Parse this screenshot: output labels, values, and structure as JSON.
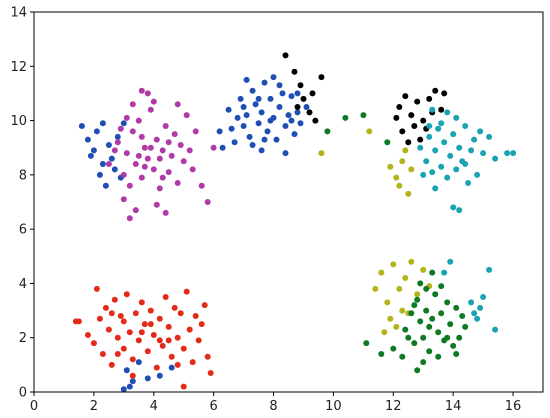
{
  "chart_data": {
    "type": "scatter",
    "title": "",
    "xlabel": "",
    "ylabel": "",
    "xlim": [
      0,
      17
    ],
    "ylim": [
      0,
      14
    ],
    "xticks": [
      "0",
      "2",
      "4",
      "6",
      "8",
      "10",
      "12",
      "14",
      "16"
    ],
    "yticks": [
      "0",
      "2",
      "4",
      "6",
      "8",
      "10",
      "12",
      "14"
    ],
    "grid": false,
    "legend": "none",
    "series": [
      {
        "color": "#1f4fb4",
        "points": [
          [
            1.6,
            9.8
          ],
          [
            1.8,
            9.3
          ],
          [
            2.0,
            8.9
          ],
          [
            2.1,
            9.6
          ],
          [
            2.3,
            8.4
          ],
          [
            2.2,
            8.0
          ],
          [
            2.5,
            9.1
          ],
          [
            2.6,
            8.6
          ],
          [
            2.4,
            7.6
          ],
          [
            2.8,
            9.4
          ],
          [
            2.7,
            8.2
          ],
          [
            2.9,
            7.9
          ],
          [
            3.0,
            9.9
          ],
          [
            1.9,
            8.7
          ],
          [
            2.3,
            9.9
          ],
          [
            6.3,
            9.0
          ],
          [
            6.2,
            9.6
          ],
          [
            6.5,
            10.4
          ],
          [
            6.7,
            9.2
          ],
          [
            6.9,
            10.8
          ],
          [
            7.0,
            9.8
          ],
          [
            7.1,
            10.2
          ],
          [
            7.2,
            9.4
          ],
          [
            7.3,
            11.1
          ],
          [
            7.4,
            10.6
          ],
          [
            7.5,
            9.9
          ],
          [
            7.6,
            10.3
          ],
          [
            7.7,
            11.4
          ],
          [
            7.8,
            9.6
          ],
          [
            7.9,
            10.8
          ],
          [
            8.0,
            10.1
          ],
          [
            8.1,
            9.3
          ],
          [
            8.2,
            10.5
          ],
          [
            8.3,
            11.0
          ],
          [
            8.4,
            9.8
          ],
          [
            8.5,
            10.2
          ],
          [
            8.6,
            10.9
          ],
          [
            8.7,
            9.5
          ],
          [
            8.8,
            10.3
          ],
          [
            8.9,
            9.9
          ],
          [
            7.0,
            10.5
          ],
          [
            7.3,
            9.1
          ],
          [
            7.6,
            8.9
          ],
          [
            8.0,
            11.6
          ],
          [
            8.4,
            8.8
          ],
          [
            7.1,
            11.5
          ],
          [
            6.8,
            10.1
          ],
          [
            7.9,
            10.0
          ],
          [
            8.6,
            10.0
          ],
          [
            7.5,
            10.8
          ],
          [
            8.2,
            11.3
          ],
          [
            6.6,
            9.7
          ],
          [
            8.8,
            11.0
          ],
          [
            7.7,
            9.3
          ],
          [
            9.1,
            10.5
          ],
          [
            3.1,
            0.8
          ],
          [
            3.3,
            0.4
          ],
          [
            3.2,
            0.2
          ],
          [
            3.8,
            0.5
          ],
          [
            3.5,
            1.1
          ],
          [
            4.2,
            0.6
          ],
          [
            4.6,
            0.9
          ],
          [
            3.0,
            0.1
          ]
        ]
      },
      {
        "color": "#b03aa8",
        "points": [
          [
            2.5,
            8.4
          ],
          [
            2.8,
            9.2
          ],
          [
            3.0,
            8.0
          ],
          [
            3.1,
            8.8
          ],
          [
            3.2,
            7.6
          ],
          [
            3.3,
            9.6
          ],
          [
            3.4,
            8.4
          ],
          [
            3.5,
            10.0
          ],
          [
            3.6,
            7.9
          ],
          [
            3.7,
            9.0
          ],
          [
            3.8,
            8.6
          ],
          [
            3.9,
            10.4
          ],
          [
            4.0,
            8.2
          ],
          [
            4.1,
            9.3
          ],
          [
            4.2,
            7.5
          ],
          [
            4.3,
            8.9
          ],
          [
            4.4,
            9.8
          ],
          [
            4.5,
            8.1
          ],
          [
            4.6,
            8.7
          ],
          [
            4.7,
            9.5
          ],
          [
            4.8,
            7.7
          ],
          [
            4.9,
            9.1
          ],
          [
            5.0,
            8.5
          ],
          [
            5.1,
            10.2
          ],
          [
            5.2,
            8.9
          ],
          [
            3.0,
            7.1
          ],
          [
            3.4,
            6.7
          ],
          [
            3.2,
            6.4
          ],
          [
            4.1,
            6.9
          ],
          [
            4.4,
            6.6
          ],
          [
            3.6,
            11.1
          ],
          [
            3.3,
            10.6
          ],
          [
            3.8,
            11.0
          ],
          [
            4.0,
            10.7
          ],
          [
            5.6,
            7.6
          ],
          [
            5.8,
            7.0
          ],
          [
            6.0,
            9.0
          ],
          [
            5.4,
            9.6
          ],
          [
            3.5,
            8.7
          ],
          [
            3.9,
            9.0
          ],
          [
            4.2,
            8.6
          ],
          [
            3.7,
            8.3
          ],
          [
            4.5,
            9.2
          ],
          [
            2.7,
            8.9
          ],
          [
            2.9,
            9.7
          ],
          [
            4.8,
            10.6
          ],
          [
            5.3,
            8.2
          ],
          [
            3.6,
            9.4
          ],
          [
            4.3,
            7.9
          ],
          [
            3.1,
            10.1
          ]
        ]
      },
      {
        "color": "#000000",
        "points": [
          [
            8.9,
            11.3
          ],
          [
            8.7,
            11.8
          ],
          [
            8.4,
            12.4
          ],
          [
            9.0,
            10.8
          ],
          [
            9.2,
            10.3
          ],
          [
            9.4,
            10.0
          ],
          [
            9.6,
            11.6
          ],
          [
            8.8,
            10.5
          ],
          [
            9.3,
            11.0
          ],
          [
            12.2,
            10.5
          ],
          [
            12.4,
            10.9
          ],
          [
            12.6,
            10.2
          ],
          [
            12.8,
            10.7
          ],
          [
            13.0,
            10.0
          ],
          [
            13.2,
            10.8
          ],
          [
            13.4,
            11.1
          ],
          [
            13.6,
            10.4
          ],
          [
            12.3,
            9.6
          ],
          [
            12.5,
            9.2
          ],
          [
            12.7,
            9.8
          ],
          [
            12.9,
            9.3
          ],
          [
            13.1,
            9.7
          ],
          [
            13.3,
            10.3
          ],
          [
            12.1,
            10.1
          ],
          [
            13.7,
            11.0
          ]
        ]
      },
      {
        "color": "#1aa3b0",
        "points": [
          [
            12.9,
            9.0
          ],
          [
            13.1,
            8.5
          ],
          [
            13.2,
            9.4
          ],
          [
            13.3,
            8.1
          ],
          [
            13.4,
            8.9
          ],
          [
            13.5,
            9.7
          ],
          [
            13.6,
            8.3
          ],
          [
            13.7,
            9.2
          ],
          [
            13.8,
            7.9
          ],
          [
            13.9,
            8.7
          ],
          [
            14.0,
            9.5
          ],
          [
            14.1,
            8.2
          ],
          [
            14.2,
            9.0
          ],
          [
            14.3,
            8.5
          ],
          [
            14.4,
            9.8
          ],
          [
            14.5,
            7.7
          ],
          [
            14.6,
            8.9
          ],
          [
            14.7,
            9.3
          ],
          [
            14.8,
            8.0
          ],
          [
            15.0,
            8.8
          ],
          [
            15.2,
            9.4
          ],
          [
            15.4,
            8.6
          ],
          [
            15.8,
            8.8
          ],
          [
            16.0,
            8.8
          ],
          [
            13.8,
            10.3
          ],
          [
            14.1,
            10.1
          ],
          [
            13.4,
            7.5
          ],
          [
            14.0,
            6.8
          ],
          [
            14.2,
            6.7
          ],
          [
            13.0,
            8.0
          ],
          [
            13.6,
            9.9
          ],
          [
            14.9,
            9.6
          ],
          [
            14.4,
            8.4
          ],
          [
            13.2,
            9.8
          ],
          [
            13.3,
            10.4
          ],
          [
            14.6,
            3.3
          ],
          [
            14.8,
            2.7
          ],
          [
            15.2,
            4.5
          ],
          [
            15.0,
            3.5
          ],
          [
            15.4,
            2.3
          ],
          [
            14.9,
            3.1
          ],
          [
            14.7,
            2.9
          ],
          [
            13.9,
            4.8
          ],
          [
            13.7,
            4.4
          ]
        ]
      },
      {
        "color": "#b3b31a",
        "points": [
          [
            9.6,
            8.8
          ],
          [
            11.2,
            9.6
          ],
          [
            11.9,
            8.3
          ],
          [
            12.1,
            7.9
          ],
          [
            12.3,
            8.5
          ],
          [
            12.5,
            7.3
          ],
          [
            12.2,
            7.6
          ],
          [
            12.6,
            8.2
          ],
          [
            12.4,
            8.9
          ],
          [
            11.4,
            3.8
          ],
          [
            11.6,
            4.4
          ],
          [
            11.8,
            3.3
          ],
          [
            12.0,
            4.7
          ],
          [
            12.2,
            3.8
          ],
          [
            12.4,
            4.2
          ],
          [
            12.6,
            4.8
          ],
          [
            12.8,
            3.6
          ],
          [
            13.0,
            4.5
          ],
          [
            13.2,
            3.9
          ],
          [
            11.9,
            2.7
          ],
          [
            12.1,
            2.4
          ],
          [
            12.3,
            3.0
          ],
          [
            11.7,
            2.2
          ],
          [
            12.5,
            2.9
          ]
        ]
      },
      {
        "color": "#0f7a24",
        "points": [
          [
            9.8,
            9.6
          ],
          [
            10.4,
            10.1
          ],
          [
            11.0,
            10.2
          ],
          [
            11.8,
            9.2
          ],
          [
            11.1,
            1.8
          ],
          [
            11.6,
            1.4
          ],
          [
            12.0,
            1.6
          ],
          [
            12.3,
            1.3
          ],
          [
            12.4,
            2.3
          ],
          [
            12.6,
            2.9
          ],
          [
            12.7,
            1.8
          ],
          [
            12.8,
            3.4
          ],
          [
            12.9,
            2.6
          ],
          [
            13.0,
            2.0
          ],
          [
            13.1,
            3.0
          ],
          [
            13.2,
            1.5
          ],
          [
            13.3,
            2.7
          ],
          [
            13.4,
            3.6
          ],
          [
            13.5,
            2.2
          ],
          [
            13.6,
            2.9
          ],
          [
            13.7,
            1.9
          ],
          [
            13.8,
            3.3
          ],
          [
            13.9,
            2.5
          ],
          [
            14.0,
            1.7
          ],
          [
            14.1,
            3.1
          ],
          [
            14.2,
            2.0
          ],
          [
            14.3,
            2.8
          ],
          [
            13.1,
            3.8
          ],
          [
            13.3,
            4.4
          ],
          [
            12.9,
            4.0
          ],
          [
            12.8,
            0.8
          ],
          [
            13.0,
            1.1
          ],
          [
            13.5,
            1.3
          ],
          [
            14.4,
            2.4
          ],
          [
            12.5,
            2.0
          ],
          [
            13.6,
            3.9
          ],
          [
            13.2,
            2.4
          ],
          [
            12.7,
            3.2
          ],
          [
            13.8,
            2.0
          ],
          [
            14.1,
            1.4
          ]
        ]
      },
      {
        "color": "#e32b1a",
        "points": [
          [
            1.4,
            2.6
          ],
          [
            1.5,
            2.6
          ],
          [
            1.8,
            2.1
          ],
          [
            2.0,
            1.8
          ],
          [
            2.1,
            3.8
          ],
          [
            2.2,
            2.7
          ],
          [
            2.3,
            1.4
          ],
          [
            2.4,
            3.1
          ],
          [
            2.5,
            2.3
          ],
          [
            2.6,
            1.0
          ],
          [
            2.7,
            3.4
          ],
          [
            2.8,
            2.0
          ],
          [
            2.9,
            2.8
          ],
          [
            3.0,
            1.6
          ],
          [
            3.1,
            3.6
          ],
          [
            3.2,
            2.2
          ],
          [
            3.3,
            1.2
          ],
          [
            3.4,
            2.9
          ],
          [
            3.5,
            1.9
          ],
          [
            3.6,
            3.3
          ],
          [
            3.7,
            2.5
          ],
          [
            3.8,
            1.5
          ],
          [
            3.9,
            3.0
          ],
          [
            4.0,
            2.1
          ],
          [
            4.1,
            0.9
          ],
          [
            4.2,
            2.7
          ],
          [
            4.3,
            1.7
          ],
          [
            4.4,
            3.5
          ],
          [
            4.5,
            2.4
          ],
          [
            4.6,
            1.3
          ],
          [
            4.7,
            3.1
          ],
          [
            4.8,
            2.0
          ],
          [
            4.9,
            2.9
          ],
          [
            5.0,
            1.6
          ],
          [
            5.1,
            3.7
          ],
          [
            5.2,
            2.3
          ],
          [
            5.3,
            1.1
          ],
          [
            5.4,
            2.8
          ],
          [
            5.5,
            1.9
          ],
          [
            5.6,
            2.5
          ],
          [
            5.8,
            1.3
          ],
          [
            5.9,
            0.7
          ],
          [
            5.0,
            0.2
          ],
          [
            3.3,
            0.6
          ],
          [
            2.8,
            1.4
          ],
          [
            3.6,
            2.2
          ],
          [
            4.2,
            1.9
          ],
          [
            3.9,
            2.5
          ],
          [
            4.5,
            1.9
          ],
          [
            3.0,
            2.6
          ],
          [
            2.6,
            2.9
          ],
          [
            4.8,
            1.0
          ],
          [
            5.7,
            3.2
          ]
        ]
      }
    ]
  }
}
